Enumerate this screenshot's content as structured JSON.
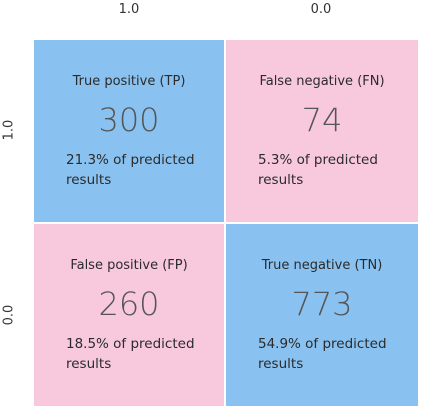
{
  "chart_data": {
    "type": "heatmap",
    "column_labels": [
      "1.0",
      "0.0"
    ],
    "row_labels": [
      "1.0",
      "0.0"
    ],
    "cells": [
      {
        "row": 0,
        "col": 0,
        "title": "True positive (TP)",
        "value": 300,
        "value_text": "300",
        "percent_text": "21.3% of predicted results",
        "color": "#89c2f0"
      },
      {
        "row": 0,
        "col": 1,
        "title": "False negative (FN)",
        "value": 74,
        "value_text": "74",
        "percent_text": "5.3% of predicted results",
        "color": "#f8c9dc"
      },
      {
        "row": 1,
        "col": 0,
        "title": "False positive (FP)",
        "value": 260,
        "value_text": "260",
        "percent_text": "18.5% of predicted results",
        "color": "#f8c9dc"
      },
      {
        "row": 1,
        "col": 1,
        "title": "True negative (TN)",
        "value": 773,
        "value_text": "773",
        "percent_text": "54.9% of predicted results",
        "color": "#89c2f0"
      }
    ]
  }
}
